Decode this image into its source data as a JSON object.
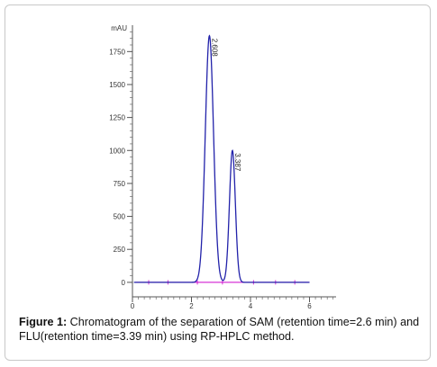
{
  "caption": {
    "label": "Figure 1:",
    "text": " Chromatogram of the separation of SAM (retention time=2.6 min) and FLU(retention time=3.39 min) using RP-HPLC method."
  },
  "chart_data": {
    "type": "line",
    "ylabel": "mAU",
    "xlim": [
      0,
      6.9
    ],
    "ylim": [
      -110,
      1950
    ],
    "x_ticks": [
      0,
      2,
      4,
      6
    ],
    "y_ticks": [
      0,
      250,
      500,
      750,
      1000,
      1250,
      1500,
      1750
    ],
    "peaks": [
      {
        "label": "2.608",
        "rt": 2.608,
        "height": 1870,
        "width": 0.14
      },
      {
        "label": "3.387",
        "rt": 3.387,
        "height": 1000,
        "width": 0.1
      }
    ],
    "colors": {
      "trace": "#2222aa",
      "baseline": "#cc00cc",
      "axis": "#555555"
    }
  }
}
